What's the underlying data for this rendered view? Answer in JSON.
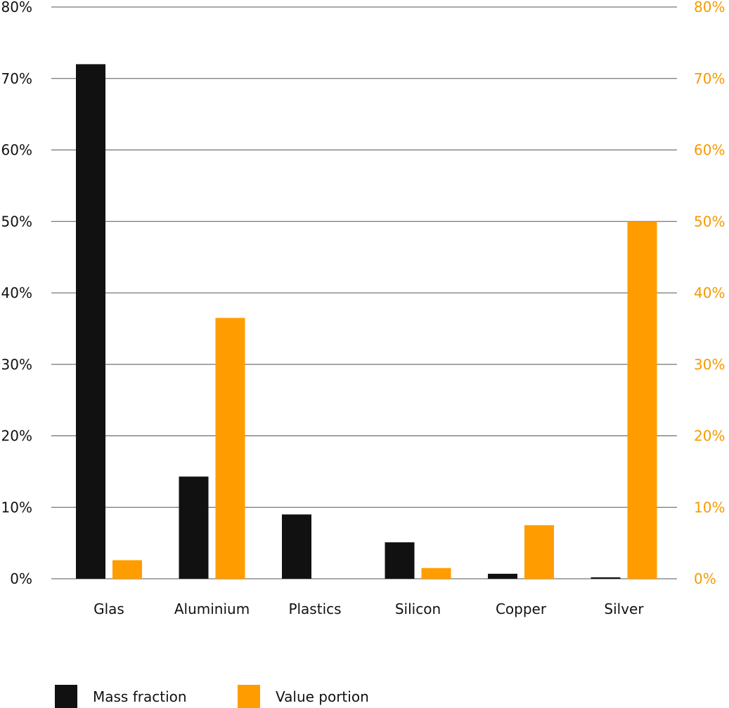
{
  "chart_data": {
    "type": "bar",
    "categories": [
      "Glas",
      "Aluminium",
      "Plastics",
      "Silicon",
      "Copper",
      "Silver"
    ],
    "series": [
      {
        "name": "Mass fraction",
        "color": "#111111",
        "axis": "left",
        "values": [
          72,
          14.3,
          9,
          5.1,
          0.7,
          0.2
        ]
      },
      {
        "name": "Value portion",
        "color": "#ff9c00",
        "axis": "right",
        "values": [
          2.6,
          36.5,
          0,
          1.5,
          7.5,
          50
        ]
      }
    ],
    "ylim": [
      0,
      80
    ],
    "y_ticks": [
      0,
      10,
      20,
      30,
      40,
      50,
      60,
      70,
      80
    ],
    "left_tick_labels": [
      "0%",
      "10%",
      "20%",
      "30%",
      "40%",
      "50%",
      "60%",
      "70%",
      "80%"
    ],
    "right_tick_labels": [
      "0%",
      "10%",
      "20%",
      "30%",
      "40%",
      "50%",
      "60%",
      "70%",
      "80%"
    ],
    "grid": true,
    "legend_position": "bottom-left",
    "colors": {
      "grid": "#555555",
      "left_axis_text": "#111111",
      "right_axis_text": "#f59a00"
    }
  }
}
